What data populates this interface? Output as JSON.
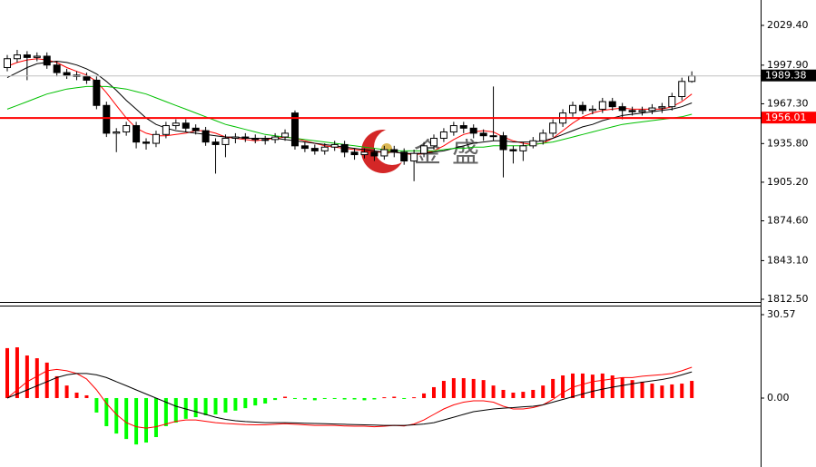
{
  "watermark": "金盛",
  "chart_data": [
    {
      "type": "candlestick",
      "ylim": [
        1810.35,
        2049.5
      ],
      "yticks": [
        {
          "value": 2029.4,
          "label": "2029.40"
        },
        {
          "value": 1997.9,
          "label": "1997.90"
        },
        {
          "value": 1967.3,
          "label": "1967.30"
        },
        {
          "value": 1935.8,
          "label": "1935.80"
        },
        {
          "value": 1905.2,
          "label": "1905.20"
        },
        {
          "value": 1874.6,
          "label": "1874.60"
        },
        {
          "value": 1843.1,
          "label": "1843.10"
        },
        {
          "value": 1812.5,
          "label": "1812.50"
        }
      ],
      "up_color": "#ffffff",
      "down_color": "#000000",
      "open": [
        1996,
        2003,
        2006,
        2004,
        2005,
        1998,
        1992,
        1990,
        1989,
        1986,
        1966,
        1944,
        1945,
        1950,
        1937,
        1936,
        1943,
        1950,
        1952,
        1948,
        1946,
        1937,
        1935,
        1940,
        1941,
        1940,
        1939,
        1939,
        1941,
        1960,
        1934,
        1932,
        1930,
        1933,
        1935,
        1929,
        1927,
        1929,
        1926,
        1931,
        1929,
        1922,
        1928,
        1934,
        1940,
        1945,
        1950,
        1948,
        1944,
        1942,
        1942,
        1931,
        1930,
        1934,
        1938,
        1944,
        1952,
        1960,
        1966,
        1962,
        1963,
        1969,
        1965,
        1962,
        1961,
        1962,
        1964,
        1965,
        1973,
        1985
      ],
      "high": [
        2006,
        2010,
        2009,
        2008,
        2008,
        2001,
        1995,
        1993,
        1992,
        1989,
        1969,
        1948,
        1953,
        1953,
        1940,
        1946,
        1953,
        1955,
        1955,
        1951,
        1949,
        1940,
        1943,
        1944,
        1944,
        1943,
        1942,
        1944,
        1947,
        1962,
        1937,
        1935,
        1936,
        1938,
        1938,
        1932,
        1932,
        1932,
        1934,
        1934,
        1932,
        1931,
        1937,
        1943,
        1948,
        1953,
        1953,
        1951,
        1947,
        1981,
        1945,
        1934,
        1937,
        1941,
        1947,
        1955,
        1963,
        1969,
        1969,
        1966,
        1972,
        1972,
        1968,
        1965,
        1965,
        1967,
        1968,
        1976,
        1988,
        1993
      ],
      "low": [
        1993,
        2000,
        1986,
        2001,
        1995,
        1989,
        1987,
        1986,
        1983,
        1963,
        1941,
        1929,
        1942,
        1932,
        1931,
        1933,
        1940,
        1947,
        1945,
        1943,
        1934,
        1912,
        1925,
        1936,
        1937,
        1936,
        1935,
        1936,
        1938,
        1931,
        1929,
        1927,
        1927,
        1930,
        1925,
        1923,
        1924,
        1922,
        1923,
        1925,
        1919,
        1906,
        1925,
        1931,
        1937,
        1942,
        1944,
        1940,
        1938,
        1938,
        1909,
        1920,
        1922,
        1932,
        1935,
        1941,
        1949,
        1957,
        1959,
        1959,
        1960,
        1962,
        1955,
        1958,
        1958,
        1959,
        1960,
        1962,
        1970,
        1984
      ],
      "close": [
        2003,
        2006,
        2004,
        2005,
        1998,
        1992,
        1990,
        1989,
        1986,
        1966,
        1944,
        1945,
        1950,
        1937,
        1936,
        1943,
        1950,
        1952,
        1948,
        1946,
        1937,
        1935,
        1940,
        1941,
        1940,
        1939,
        1939,
        1941,
        1944,
        1934,
        1932,
        1930,
        1933,
        1935,
        1929,
        1927,
        1929,
        1926,
        1931,
        1929,
        1922,
        1928,
        1934,
        1940,
        1945,
        1950,
        1948,
        1944,
        1942,
        1942,
        1931,
        1930,
        1934,
        1938,
        1944,
        1952,
        1960,
        1966,
        1962,
        1963,
        1969,
        1965,
        1962,
        1961,
        1962,
        1964,
        1965,
        1973,
        1985,
        1989.38
      ],
      "moving_averages": [
        {
          "color": "#ff0000",
          "values": [
            1997,
            2000,
            2002,
            2003,
            2002,
            2000,
            1996,
            1993,
            1990,
            1985,
            1976,
            1966,
            1956,
            1948,
            1944,
            1942,
            1942,
            1943,
            1944,
            1946,
            1946,
            1944,
            1941,
            1940,
            1939,
            1938,
            1939,
            1940,
            1941,
            1940,
            1938,
            1936,
            1934,
            1933,
            1932,
            1931,
            1930,
            1929,
            1929,
            1929,
            1928,
            1927,
            1928,
            1930,
            1934,
            1939,
            1943,
            1945,
            1946,
            1945,
            1941,
            1938,
            1936,
            1935,
            1936,
            1940,
            1946,
            1952,
            1957,
            1960,
            1962,
            1963,
            1964,
            1963,
            1963,
            1963,
            1963,
            1965,
            1969,
            1975
          ]
        },
        {
          "color": "#000000",
          "values": [
            1988,
            1992,
            1996,
            1999,
            2000,
            2001,
            2000,
            1998,
            1995,
            1991,
            1985,
            1978,
            1970,
            1963,
            1956,
            1951,
            1948,
            1946,
            1945,
            1944,
            1943,
            1942,
            1941,
            1941,
            1940,
            1940,
            1940,
            1940,
            1939,
            1938,
            1937,
            1936,
            1935,
            1934,
            1933,
            1932,
            1931,
            1930,
            1929,
            1929,
            1928,
            1928,
            1928,
            1929,
            1930,
            1932,
            1934,
            1936,
            1937,
            1938,
            1938,
            1937,
            1937,
            1937,
            1938,
            1940,
            1943,
            1946,
            1949,
            1951,
            1954,
            1956,
            1958,
            1959,
            1960,
            1961,
            1962,
            1963,
            1965,
            1968
          ]
        },
        {
          "color": "#00c000",
          "values": [
            1963,
            1966,
            1969,
            1972,
            1975,
            1977,
            1979,
            1980,
            1981,
            1981,
            1981,
            1980,
            1979,
            1977,
            1975,
            1972,
            1969,
            1966,
            1963,
            1960,
            1957,
            1954,
            1951,
            1949,
            1947,
            1945,
            1943,
            1942,
            1941,
            1940,
            1939,
            1938,
            1937,
            1936,
            1935,
            1934,
            1933,
            1932,
            1931,
            1930,
            1930,
            1930,
            1930,
            1930,
            1931,
            1932,
            1932,
            1933,
            1933,
            1934,
            1934,
            1934,
            1934,
            1935,
            1936,
            1937,
            1939,
            1941,
            1943,
            1945,
            1947,
            1949,
            1951,
            1952,
            1953,
            1954,
            1955,
            1956,
            1957,
            1959
          ]
        }
      ],
      "levels": [
        {
          "value": 1989.38,
          "color": "#c0c0c0",
          "label_color": "#000000"
        },
        {
          "value": 1956.01,
          "color": "#ff0000",
          "label_color": "#ff0000"
        }
      ]
    },
    {
      "type": "macd",
      "ylim": [
        -25.26,
        33.56
      ],
      "yticks": [
        30.57,
        {
          "value": 0,
          "label": "0.00"
        }
      ],
      "up_color": "#ff0000",
      "down_color": "#00ff00",
      "histogram": [
        18.3,
        18.6,
        15.6,
        14.6,
        13,
        8,
        4.6,
        2,
        1,
        -5.3,
        -10.3,
        -13,
        -15,
        -17,
        -16.3,
        -14.3,
        -10.3,
        -9,
        -7.6,
        -7,
        -6.3,
        -6,
        -5.3,
        -4.6,
        -3.7,
        -2.7,
        -2,
        -0.7,
        0.5,
        -0.3,
        -0.5,
        -0.8,
        -0.3,
        -0.3,
        -0.5,
        -0.5,
        -0.8,
        -0.5,
        0.3,
        0.5,
        -0.2,
        0.3,
        1.7,
        4,
        6.3,
        7.3,
        7.3,
        7,
        6.6,
        4.6,
        3,
        2,
        2.3,
        3,
        4.6,
        7,
        8.3,
        9,
        9,
        8.6,
        9,
        8.3,
        7.6,
        6.6,
        6,
        5.3,
        4.6,
        5,
        5.3,
        6.3
      ],
      "lines": [
        {
          "color": "#ff0000",
          "values": [
            0,
            3,
            6,
            8,
            10,
            10.5,
            10,
            9,
            7,
            3,
            -2,
            -6,
            -9,
            -10.5,
            -11,
            -10.5,
            -9.5,
            -8.5,
            -8,
            -8,
            -8.5,
            -9,
            -9.3,
            -9.5,
            -9.7,
            -9.8,
            -9.8,
            -9.6,
            -9.4,
            -9.6,
            -9.8,
            -10,
            -10,
            -10,
            -10.2,
            -10.3,
            -10.3,
            -10.5,
            -10.3,
            -10,
            -10.2,
            -9.5,
            -8,
            -6,
            -4,
            -2.5,
            -1.5,
            -1,
            -1,
            -1.5,
            -3,
            -4,
            -4,
            -3.5,
            -2.5,
            -0.5,
            2,
            4,
            5,
            6,
            6.5,
            7,
            7.5,
            7.5,
            8,
            8.3,
            8.6,
            9,
            10,
            11.3
          ]
        },
        {
          "color": "#000000",
          "values": [
            0,
            1.5,
            3,
            4.5,
            6,
            7.5,
            8.5,
            9,
            9,
            8.5,
            7.5,
            6,
            4.5,
            3,
            1.5,
            0,
            -1.5,
            -3,
            -4,
            -5,
            -6,
            -7,
            -7.8,
            -8.3,
            -8.6,
            -8.8,
            -9,
            -9,
            -9,
            -9.1,
            -9.2,
            -9.3,
            -9.4,
            -9.5,
            -9.6,
            -9.7,
            -9.8,
            -9.9,
            -10,
            -10,
            -10,
            -9.8,
            -9.5,
            -9,
            -8,
            -7,
            -6,
            -5,
            -4.5,
            -4,
            -3.7,
            -3.5,
            -3.2,
            -3,
            -2.5,
            -1.5,
            -0.5,
            0.5,
            1.5,
            2.5,
            3.3,
            4,
            4.6,
            5.2,
            5.8,
            6.3,
            6.8,
            7.5,
            8.5,
            9.6
          ]
        }
      ]
    }
  ]
}
